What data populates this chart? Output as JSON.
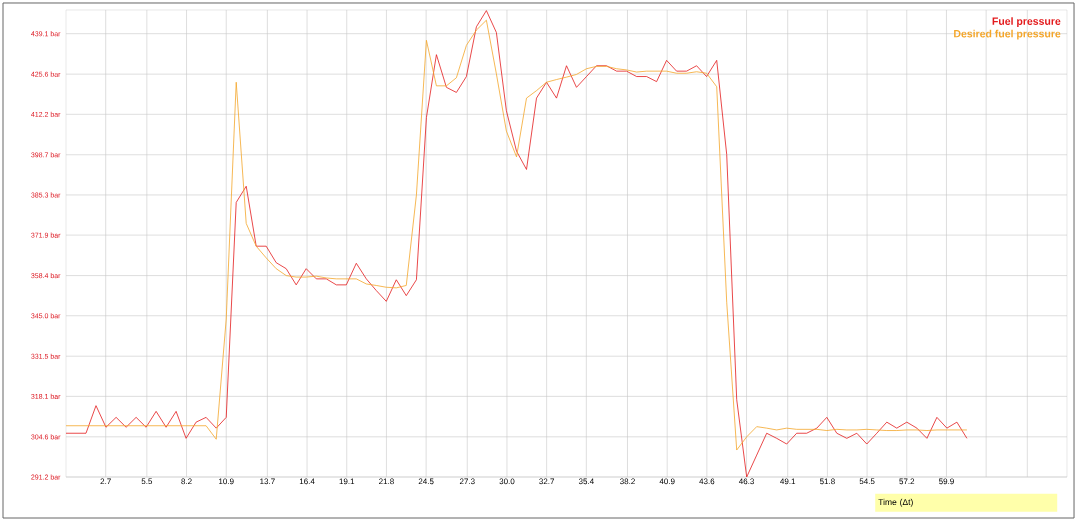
{
  "chart_data": {
    "type": "line",
    "xlabel": "Time (Δt)",
    "x": [
      0,
      0.68,
      1.36,
      2.04,
      2.72,
      3.41,
      4.09,
      4.77,
      5.45,
      6.13,
      6.81,
      7.49,
      8.17,
      8.85,
      9.53,
      10.22,
      10.9,
      11.58,
      12.26,
      12.94,
      13.62,
      14.3,
      14.98,
      15.66,
      16.34,
      17.03,
      17.71,
      18.39,
      19.07,
      19.75,
      20.43,
      21.11,
      21.79,
      22.47,
      23.15,
      23.84,
      24.52,
      25.2,
      25.88,
      26.56,
      27.24,
      27.92,
      28.6,
      29.28,
      29.96,
      30.65,
      31.33,
      32.01,
      32.69,
      33.37,
      34.05,
      34.73,
      35.41,
      36.09,
      36.77,
      37.46,
      38.14,
      38.82,
      39.5,
      40.18,
      40.86,
      41.54,
      42.22,
      42.9,
      43.58,
      44.27,
      44.95,
      45.63,
      46.31,
      46.99,
      47.67,
      48.35,
      49.03,
      49.71,
      50.39,
      51.08,
      51.76,
      52.44,
      53.12,
      53.8,
      54.48,
      55.16,
      55.84,
      56.52,
      57.2,
      57.89,
      58.57,
      59.25,
      59.93,
      60.61,
      61.29
    ],
    "series": [
      {
        "name": "Fuel pressure",
        "color": "#e31a1c",
        "values": [
          305.8,
          305.8,
          305.8,
          315.0,
          307.8,
          311.1,
          307.8,
          311.1,
          307.8,
          313.1,
          307.8,
          313.1,
          304.1,
          309.5,
          311.1,
          307.5,
          311.1,
          382.8,
          388.2,
          368.2,
          368.2,
          362.7,
          360.7,
          355.3,
          360.7,
          357.3,
          357.3,
          355.3,
          355.3,
          362.5,
          357.3,
          353.4,
          349.8,
          357.0,
          351.7,
          357.0,
          411.1,
          432.1,
          421.2,
          419.5,
          424.8,
          441.4,
          446.8,
          439.5,
          413.4,
          399.9,
          393.8,
          417.6,
          422.9,
          417.6,
          428.4,
          421.2,
          424.8,
          428.4,
          428.4,
          426.6,
          426.6,
          424.8,
          424.8,
          423.1,
          430.2,
          426.6,
          426.6,
          428.4,
          424.8,
          430.2,
          398.8,
          317.0,
          291.2,
          298.5,
          305.8,
          304.1,
          302.2,
          305.8,
          305.8,
          307.5,
          311.1,
          305.8,
          304.1,
          305.8,
          302.2,
          305.8,
          309.5,
          307.5,
          309.5,
          307.5,
          304.1,
          311.1,
          307.5,
          309.5,
          304.1
        ]
      },
      {
        "name": "Desired fuel pressure",
        "color": "#f4a62a",
        "values": [
          308.3,
          308.3,
          308.3,
          308.3,
          308.3,
          308.3,
          308.3,
          308.3,
          308.3,
          308.3,
          308.3,
          308.3,
          308.3,
          308.3,
          308.3,
          303.8,
          343.9,
          422.9,
          375.8,
          368.2,
          364.3,
          360.7,
          358.4,
          357.9,
          357.9,
          358.2,
          357.6,
          357.3,
          357.3,
          357.3,
          355.6,
          355.1,
          354.5,
          354.3,
          355.1,
          385.3,
          436.9,
          421.7,
          421.7,
          424.4,
          435.2,
          440.3,
          443.6,
          425.7,
          406.6,
          398.0,
          417.6,
          420.1,
          422.9,
          423.8,
          424.6,
          425.5,
          427.4,
          428.2,
          428.2,
          427.4,
          427.0,
          426.3,
          426.6,
          426.6,
          426.6,
          425.9,
          425.9,
          426.4,
          425.9,
          421.4,
          349.5,
          300.2,
          304.6,
          308.0,
          307.5,
          306.9,
          307.5,
          307.1,
          307.1,
          307.1,
          306.7,
          307.1,
          306.9,
          306.9,
          307.1,
          306.9,
          306.7,
          306.7,
          306.9,
          306.9,
          306.7,
          306.9,
          306.9,
          306.9,
          306.9
        ]
      }
    ],
    "xlim": [
      0,
      68.1
    ],
    "xticks": [
      2.7,
      5.5,
      8.2,
      10.9,
      13.7,
      16.4,
      19.1,
      21.8,
      24.5,
      27.3,
      {
        "value": 30.0,
        "label": "30.0"
      },
      32.7,
      35.4,
      38.2,
      40.9,
      43.6,
      46.3,
      49.1,
      51.8,
      54.5,
      57.2,
      59.9,
      {
        "value": 62.6,
        "label": null
      },
      {
        "value": 65.4,
        "label": null
      }
    ],
    "ylim": [
      291.2,
      447.0
    ],
    "yticks": [
      {
        "value": 291.2,
        "label": "291.2 bar"
      },
      {
        "value": 304.6,
        "label": "304.6 bar"
      },
      {
        "value": 318.1,
        "label": "318.1 bar"
      },
      {
        "value": 331.5,
        "label": "331.5 bar"
      },
      {
        "value": 345.0,
        "label": "345.0 bar"
      },
      {
        "value": 358.4,
        "label": "358.4 bar"
      },
      {
        "value": 371.9,
        "label": "371.9 bar"
      },
      {
        "value": 385.3,
        "label": "385.3 bar"
      },
      {
        "value": 398.7,
        "label": "398.7 bar"
      },
      {
        "value": 412.2,
        "label": "412.2 bar"
      },
      {
        "value": 425.6,
        "label": "425.6 bar"
      },
      {
        "value": 439.1,
        "label": "439.1 bar"
      }
    ],
    "grid": true,
    "legend": "top right"
  }
}
